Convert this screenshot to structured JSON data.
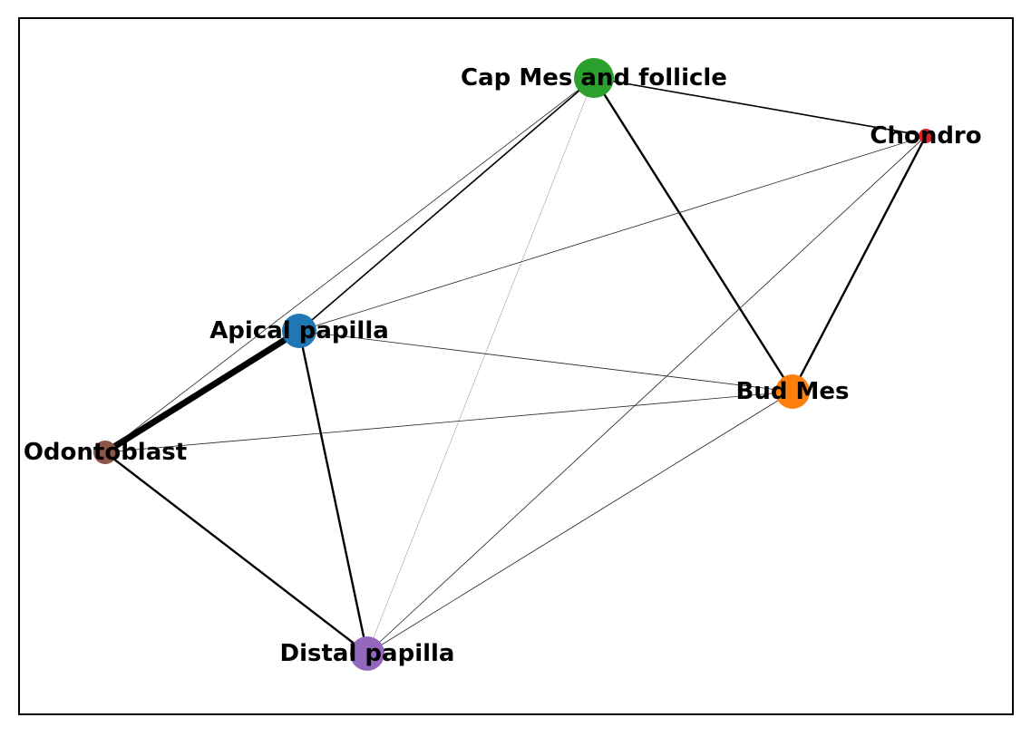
{
  "graph": {
    "nodes": [
      {
        "id": "apical",
        "label": "Apical papilla",
        "color": "#1f77b4",
        "size": "large"
      },
      {
        "id": "bud",
        "label": "Bud Mes",
        "color": "#ff7f0e",
        "size": "large"
      },
      {
        "id": "cap",
        "label": "Cap Mes and follicle",
        "color": "#2ca02c",
        "size": "largest"
      },
      {
        "id": "chondro",
        "label": "Chondro",
        "color": "#d62728",
        "size": "smallest"
      },
      {
        "id": "distal",
        "label": "Distal papilla",
        "color": "#9467bd",
        "size": "large"
      },
      {
        "id": "odonto",
        "label": "Odontoblast",
        "color": "#8c564b",
        "size": "small"
      }
    ],
    "edges": [
      {
        "source": "apical",
        "target": "odonto",
        "weight": "heaviest"
      },
      {
        "source": "apical",
        "target": "distal",
        "weight": "strong"
      },
      {
        "source": "odonto",
        "target": "distal",
        "weight": "strong"
      },
      {
        "source": "cap",
        "target": "bud",
        "weight": "strong"
      },
      {
        "source": "bud",
        "target": "chondro",
        "weight": "strong"
      },
      {
        "source": "cap",
        "target": "chondro",
        "weight": "medium"
      },
      {
        "source": "cap",
        "target": "apical",
        "weight": "medium"
      },
      {
        "source": "cap",
        "target": "odonto",
        "weight": "weak"
      },
      {
        "source": "cap",
        "target": "distal",
        "weight": "faint"
      },
      {
        "source": "apical",
        "target": "chondro",
        "weight": "weak"
      },
      {
        "source": "apical",
        "target": "bud",
        "weight": "weak"
      },
      {
        "source": "odonto",
        "target": "bud",
        "weight": "weak"
      },
      {
        "source": "distal",
        "target": "chondro",
        "weight": "weak"
      },
      {
        "source": "distal",
        "target": "bud",
        "weight": "weak"
      }
    ]
  }
}
